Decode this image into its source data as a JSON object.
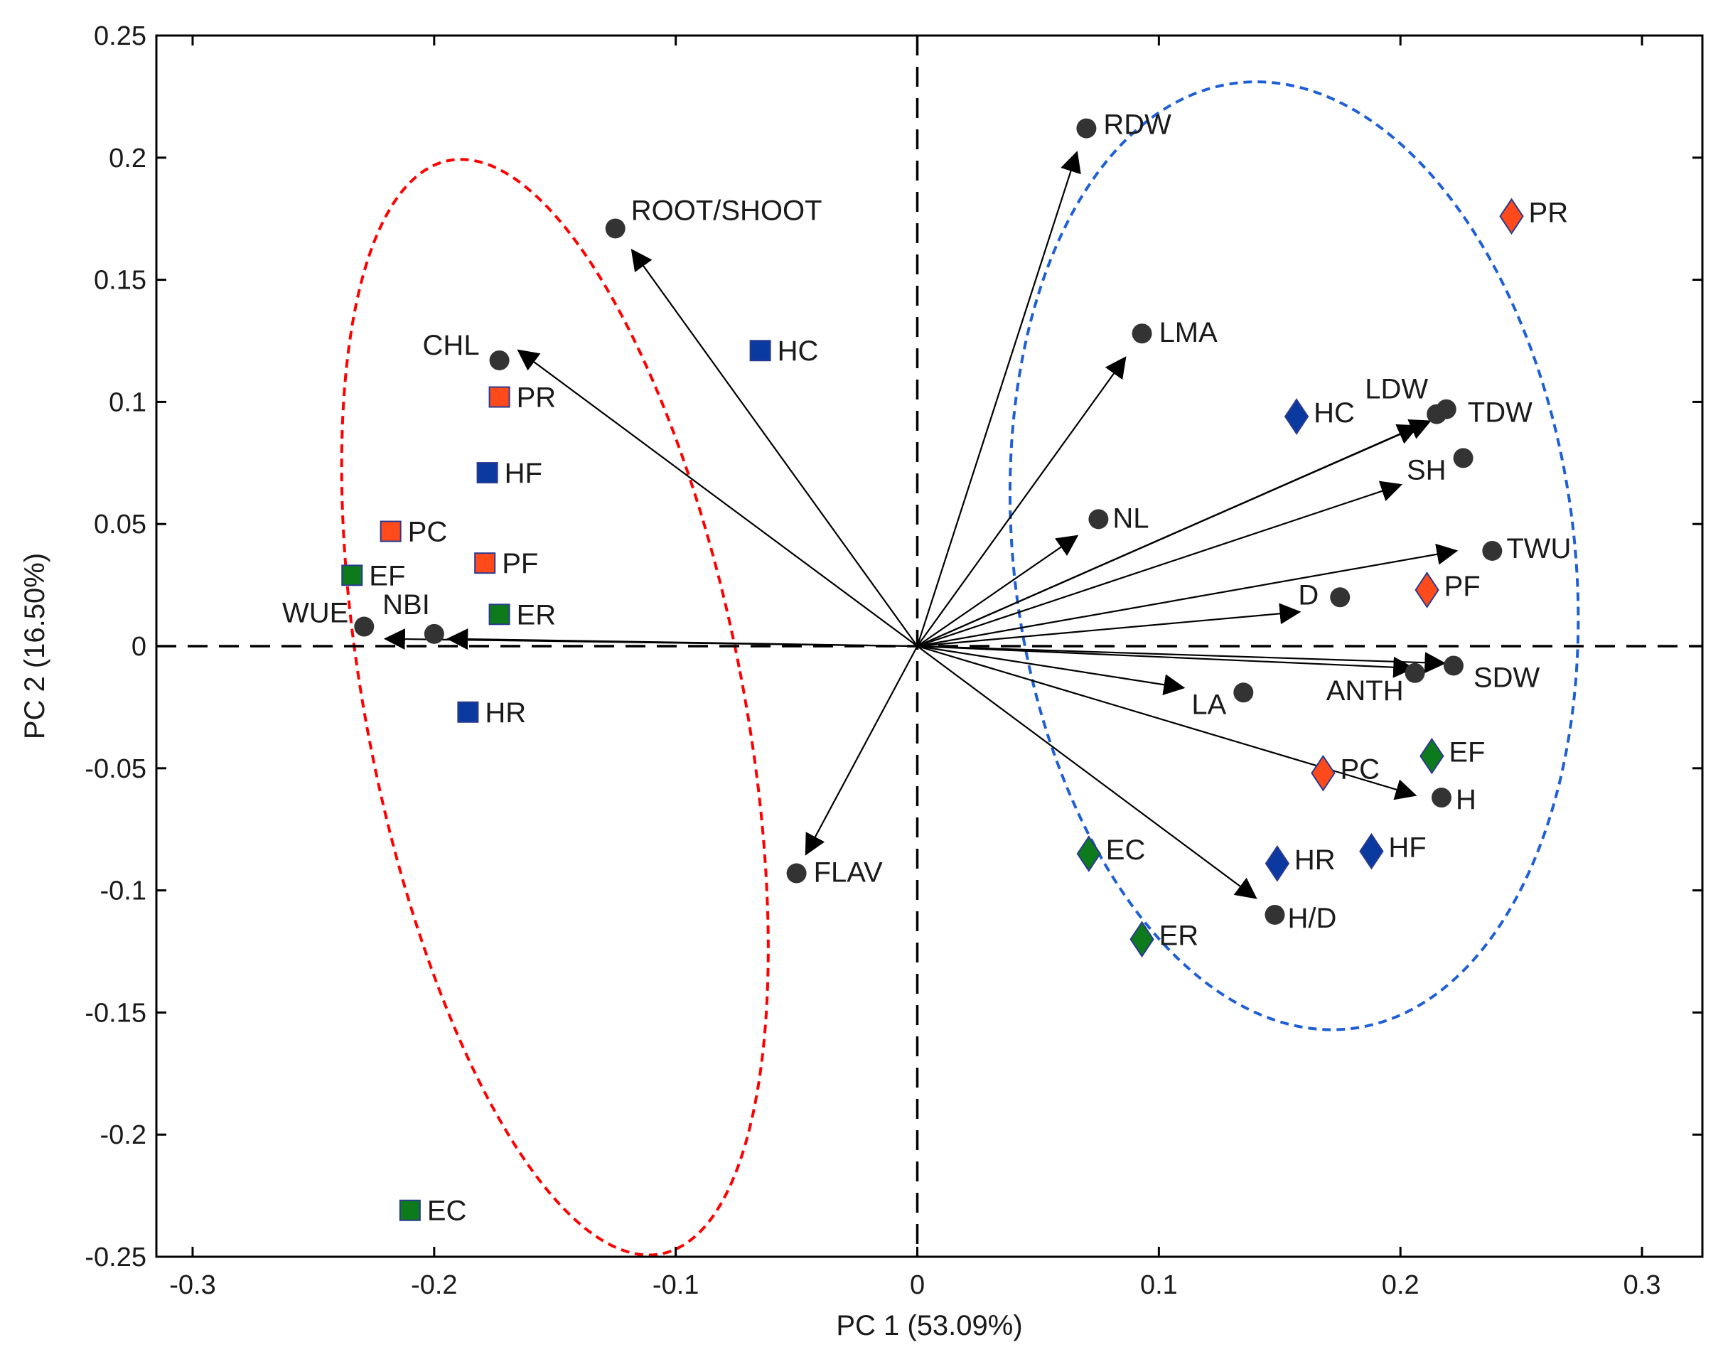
{
  "chart_data": {
    "type": "scatter",
    "subtype": "pca-biplot",
    "title": "",
    "xlabel": "PC 1 (53.09%)",
    "ylabel": "PC 2 (16.50%)",
    "xlim": [
      -0.315,
      0.325
    ],
    "ylim": [
      -0.25,
      0.25
    ],
    "xticks": [
      -0.3,
      -0.2,
      -0.1,
      0,
      0.1,
      0.2,
      0.3
    ],
    "xtick_labels": [
      "-0.3",
      "-0.2",
      "-0.1",
      "0",
      "0.1",
      "0.2",
      "0.3"
    ],
    "yticks": [
      -0.25,
      -0.2,
      -0.15,
      -0.1,
      -0.05,
      0,
      0.05,
      0.1,
      0.15,
      0.2,
      0.25
    ],
    "ytick_labels": [
      "-0.25",
      "-0.2",
      "-0.15",
      "-0.1",
      "-0.05",
      "0",
      "0.05",
      "0.1",
      "0.15",
      "0.2",
      "0.25"
    ],
    "grid": false,
    "colors": {
      "orange": "#ff4a1c",
      "blue": "#0a3aa0",
      "green": "#0d7a1c",
      "variable": "#333333",
      "red_ellipse": "#ff0000",
      "blue_ellipse": "#1f5fd6"
    },
    "variables": [
      {
        "label": "ROOT/SHOOT",
        "x": -0.125,
        "y": 0.171,
        "arrow": [
          -0.118,
          0.162
        ]
      },
      {
        "label": "CHL",
        "x": -0.173,
        "y": 0.117,
        "arrow": [
          -0.165,
          0.121
        ]
      },
      {
        "label": "WUE",
        "x": -0.229,
        "y": 0.008,
        "arrow": [
          -0.22,
          0.003
        ]
      },
      {
        "label": "NBI",
        "x": -0.2,
        "y": 0.005,
        "arrow": [
          -0.194,
          0.003
        ]
      },
      {
        "label": "FLAV",
        "x": -0.05,
        "y": -0.093,
        "arrow": [
          -0.046,
          -0.085
        ]
      },
      {
        "label": "RDW",
        "x": 0.07,
        "y": 0.212,
        "arrow": [
          0.066,
          0.202
        ]
      },
      {
        "label": "LMA",
        "x": 0.093,
        "y": 0.128,
        "arrow": [
          0.086,
          0.118
        ]
      },
      {
        "label": "NL",
        "x": 0.075,
        "y": 0.052,
        "arrow": [
          0.066,
          0.045
        ]
      },
      {
        "label": "LDW",
        "x": 0.215,
        "y": 0.095,
        "arrow": [
          0.207,
          0.09
        ]
      },
      {
        "label": "TDW",
        "x": 0.219,
        "y": 0.097,
        "arrow": [
          0.212,
          0.092
        ]
      },
      {
        "label": "SH",
        "x": 0.226,
        "y": 0.077,
        "arrow": [
          0.2,
          0.066
        ]
      },
      {
        "label": "TWU",
        "x": 0.238,
        "y": 0.039,
        "arrow": [
          0.223,
          0.039
        ]
      },
      {
        "label": "D",
        "x": 0.175,
        "y": 0.02,
        "arrow": [
          0.158,
          0.014
        ]
      },
      {
        "label": "ANTH",
        "x": 0.206,
        "y": -0.011,
        "arrow": [
          0.205,
          -0.009
        ]
      },
      {
        "label": "SDW",
        "x": 0.222,
        "y": -0.008,
        "arrow": [
          0.218,
          -0.007
        ]
      },
      {
        "label": "LA",
        "x": 0.135,
        "y": -0.019,
        "arrow": [
          0.11,
          -0.017
        ]
      },
      {
        "label": "H",
        "x": 0.217,
        "y": -0.062,
        "arrow": [
          0.206,
          -0.061
        ]
      },
      {
        "label": "H/D",
        "x": 0.148,
        "y": -0.11,
        "arrow": [
          0.14,
          -0.103
        ]
      }
    ],
    "series": [
      {
        "name": "Squares (red ellipse group)",
        "marker": "square",
        "points": [
          {
            "label": "HC",
            "x": -0.065,
            "y": 0.121,
            "color": "blue"
          },
          {
            "label": "PR",
            "x": -0.173,
            "y": 0.102,
            "color": "orange"
          },
          {
            "label": "HF",
            "x": -0.178,
            "y": 0.071,
            "color": "blue"
          },
          {
            "label": "PC",
            "x": -0.218,
            "y": 0.047,
            "color": "orange"
          },
          {
            "label": "PF",
            "x": -0.179,
            "y": 0.034,
            "color": "orange"
          },
          {
            "label": "EF",
            "x": -0.234,
            "y": 0.029,
            "color": "green"
          },
          {
            "label": "ER",
            "x": -0.173,
            "y": 0.013,
            "color": "green"
          },
          {
            "label": "HR",
            "x": -0.186,
            "y": -0.027,
            "color": "blue"
          },
          {
            "label": "EC",
            "x": -0.21,
            "y": -0.231,
            "color": "green"
          }
        ]
      },
      {
        "name": "Diamonds (blue ellipse group)",
        "marker": "diamond",
        "points": [
          {
            "label": "PR",
            "x": 0.246,
            "y": 0.176,
            "color": "orange"
          },
          {
            "label": "HC",
            "x": 0.157,
            "y": 0.094,
            "color": "blue"
          },
          {
            "label": "PF",
            "x": 0.211,
            "y": 0.023,
            "color": "orange"
          },
          {
            "label": "PC",
            "x": 0.168,
            "y": -0.052,
            "color": "orange"
          },
          {
            "label": "EF",
            "x": 0.213,
            "y": -0.045,
            "color": "green"
          },
          {
            "label": "EC",
            "x": 0.071,
            "y": -0.085,
            "color": "green"
          },
          {
            "label": "HR",
            "x": 0.149,
            "y": -0.089,
            "color": "blue"
          },
          {
            "label": "HF",
            "x": 0.188,
            "y": -0.084,
            "color": "blue"
          },
          {
            "label": "ER",
            "x": 0.093,
            "y": -0.12,
            "color": "green"
          }
        ]
      }
    ],
    "ellipses": [
      {
        "name": "red-group",
        "cx": -0.15,
        "cy": -0.025,
        "rx": 0.078,
        "ry": 0.228,
        "rotation_deg": -11,
        "color": "red_ellipse"
      },
      {
        "name": "blue-group",
        "cx": 0.156,
        "cy": 0.037,
        "rx": 0.116,
        "ry": 0.195,
        "rotation_deg": -7,
        "color": "blue_ellipse"
      }
    ]
  }
}
